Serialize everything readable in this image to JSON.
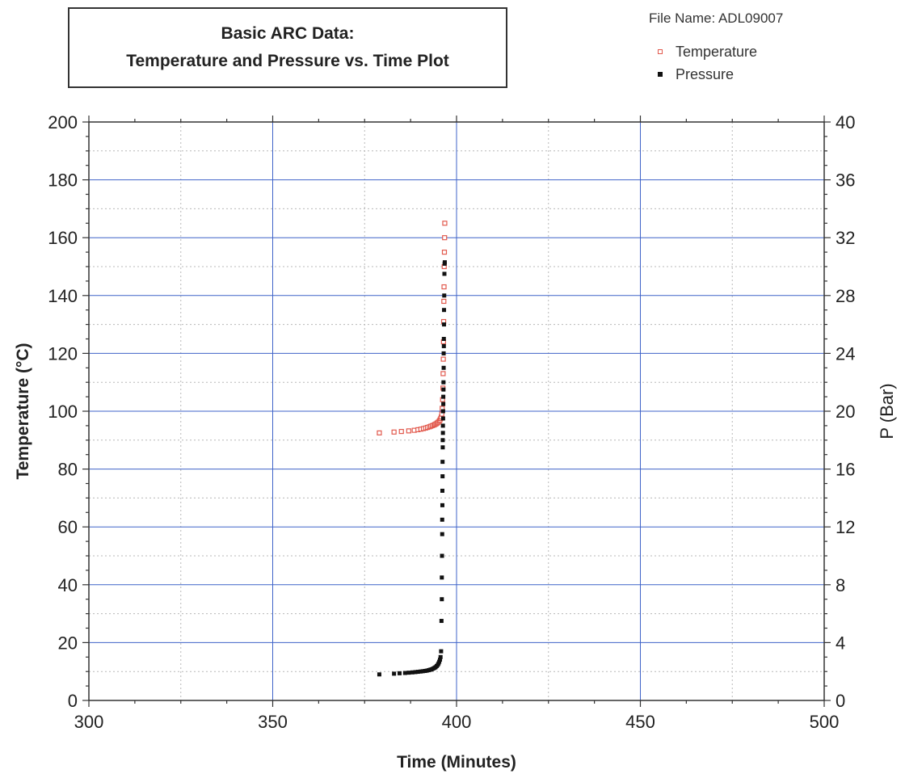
{
  "chart_data": {
    "type": "scatter",
    "title": [
      "Basic ARC Data:",
      "Temperature and Pressure vs. Time Plot"
    ],
    "file_name": "File Name: ADL09007",
    "xlabel": "Time (Minutes)",
    "ylabel": "Temperature (°C)",
    "y2label": "P (Bar)",
    "xlim": [
      300,
      500
    ],
    "ylim": [
      0,
      200
    ],
    "y2lim": [
      0,
      40
    ],
    "x_ticks": [
      300,
      350,
      400,
      450,
      500
    ],
    "y_ticks": [
      0,
      20,
      40,
      60,
      80,
      100,
      120,
      140,
      160,
      180,
      200
    ],
    "y2_ticks": [
      0,
      4,
      8,
      12,
      16,
      20,
      24,
      28,
      32,
      36,
      40
    ],
    "grid": true,
    "legend_position": "top-right",
    "colors": {
      "temperature": "#e25a4e",
      "pressure": "#111111",
      "grid_major": "#3f63c8",
      "grid_minor": "#b8b8b8"
    },
    "series": [
      {
        "name": "Temperature",
        "axis": "left",
        "marker": "open-square",
        "x": [
          379,
          383,
          385,
          387,
          388.5,
          389.5,
          390.3,
          391,
          391.6,
          392.1,
          392.6,
          393,
          393.4,
          393.8,
          394.1,
          394.4,
          394.7,
          395,
          395.3,
          395.5,
          395.7,
          395.85,
          396,
          396.1,
          396.2,
          396.3,
          396.35,
          396.4,
          396.45,
          396.5,
          396.55,
          396.6,
          396.65,
          396.7,
          396.75,
          396.8
        ],
        "y": [
          92.5,
          92.8,
          93,
          93.2,
          93.4,
          93.6,
          93.8,
          94,
          94.2,
          94.4,
          94.6,
          94.8,
          95,
          95.2,
          95.4,
          95.6,
          95.9,
          96.2,
          96.6,
          97,
          97.5,
          98,
          99,
          101,
          104,
          108,
          113,
          118,
          124,
          131,
          138,
          143,
          150,
          155,
          160,
          165
        ]
      },
      {
        "name": "Pressure",
        "axis": "right",
        "marker": "filled-square",
        "x": [
          379,
          383,
          384.5,
          386,
          387,
          388,
          388.8,
          389.5,
          390.2,
          390.8,
          391.4,
          391.9,
          392.4,
          392.8,
          393.2,
          393.6,
          394,
          394.3,
          394.6,
          394.9,
          395.1,
          395.3,
          395.5,
          395.65,
          395.8,
          395.9,
          396,
          396,
          396.05,
          396.1,
          396.1,
          396.15,
          396.15,
          396.2,
          396.2,
          396.25,
          396.25,
          396.3,
          396.3,
          396.35,
          396.35,
          396.4,
          396.4,
          396.45,
          396.45,
          396.5,
          396.5,
          396.55,
          396.55,
          396.6,
          396.6,
          396.65,
          396.7,
          396.75,
          396.8
        ],
        "y": [
          1.8,
          1.85,
          1.88,
          1.9,
          1.92,
          1.94,
          1.96,
          1.98,
          2.0,
          2.02,
          2.04,
          2.06,
          2.09,
          2.12,
          2.15,
          2.2,
          2.25,
          2.3,
          2.38,
          2.46,
          2.56,
          2.68,
          2.82,
          3.0,
          3.4,
          5.5,
          7.0,
          8.5,
          10,
          11.5,
          12.5,
          13.5,
          14.5,
          15.5,
          16.5,
          17.5,
          18,
          18.5,
          19,
          19.5,
          20,
          20.5,
          21,
          21.5,
          22,
          23,
          24,
          24.5,
          25,
          26,
          27,
          28,
          29.5,
          30.2,
          30.3
        ]
      }
    ]
  }
}
